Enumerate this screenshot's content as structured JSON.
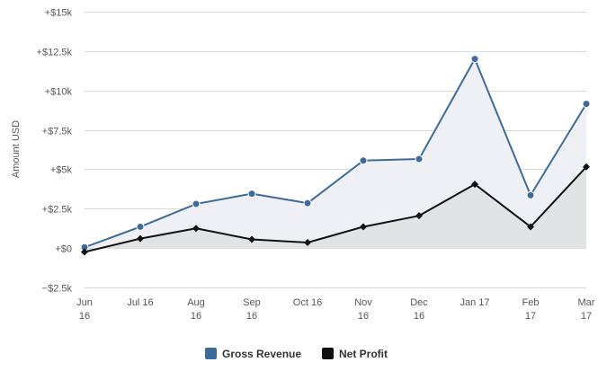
{
  "chart_data": {
    "type": "area",
    "categories": [
      [
        "Jun",
        "16"
      ],
      [
        "Jul 16"
      ],
      [
        "Aug",
        "16"
      ],
      [
        "Sep",
        "16"
      ],
      [
        "Oct 16"
      ],
      [
        "Nov",
        "16"
      ],
      [
        "Dec",
        "16"
      ],
      [
        "Jan 17"
      ],
      [
        "Feb",
        "17"
      ],
      [
        "Mar",
        "17"
      ]
    ],
    "ylabel": "Amount USD",
    "ylim": [
      -2500,
      15000
    ],
    "yticks": [
      {
        "value": -2500,
        "label": "−$2.5k"
      },
      {
        "value": 0,
        "label": "+$0"
      },
      {
        "value": 2500,
        "label": "+$2.5k"
      },
      {
        "value": 5000,
        "label": "+$5k"
      },
      {
        "value": 7500,
        "label": "+$7.5k"
      },
      {
        "value": 10000,
        "label": "+$10k"
      },
      {
        "value": 12500,
        "label": "+$12.5k"
      },
      {
        "value": 15000,
        "label": "+$15k"
      }
    ],
    "grid": true,
    "legend_position": "bottom-center",
    "series": [
      {
        "name": "Gross Revenue",
        "color": "#3d6b9a",
        "fill": "#eef0f6",
        "marker": "circle",
        "values": [
          50,
          1350,
          2800,
          3450,
          2850,
          5550,
          5650,
          12000,
          3350,
          9150
        ]
      },
      {
        "name": "Net Profit",
        "color": "#111111",
        "fill": "#e0e2e4",
        "marker": "diamond",
        "values": [
          -250,
          600,
          1250,
          550,
          350,
          1350,
          2050,
          4050,
          1350,
          5150
        ]
      }
    ]
  }
}
